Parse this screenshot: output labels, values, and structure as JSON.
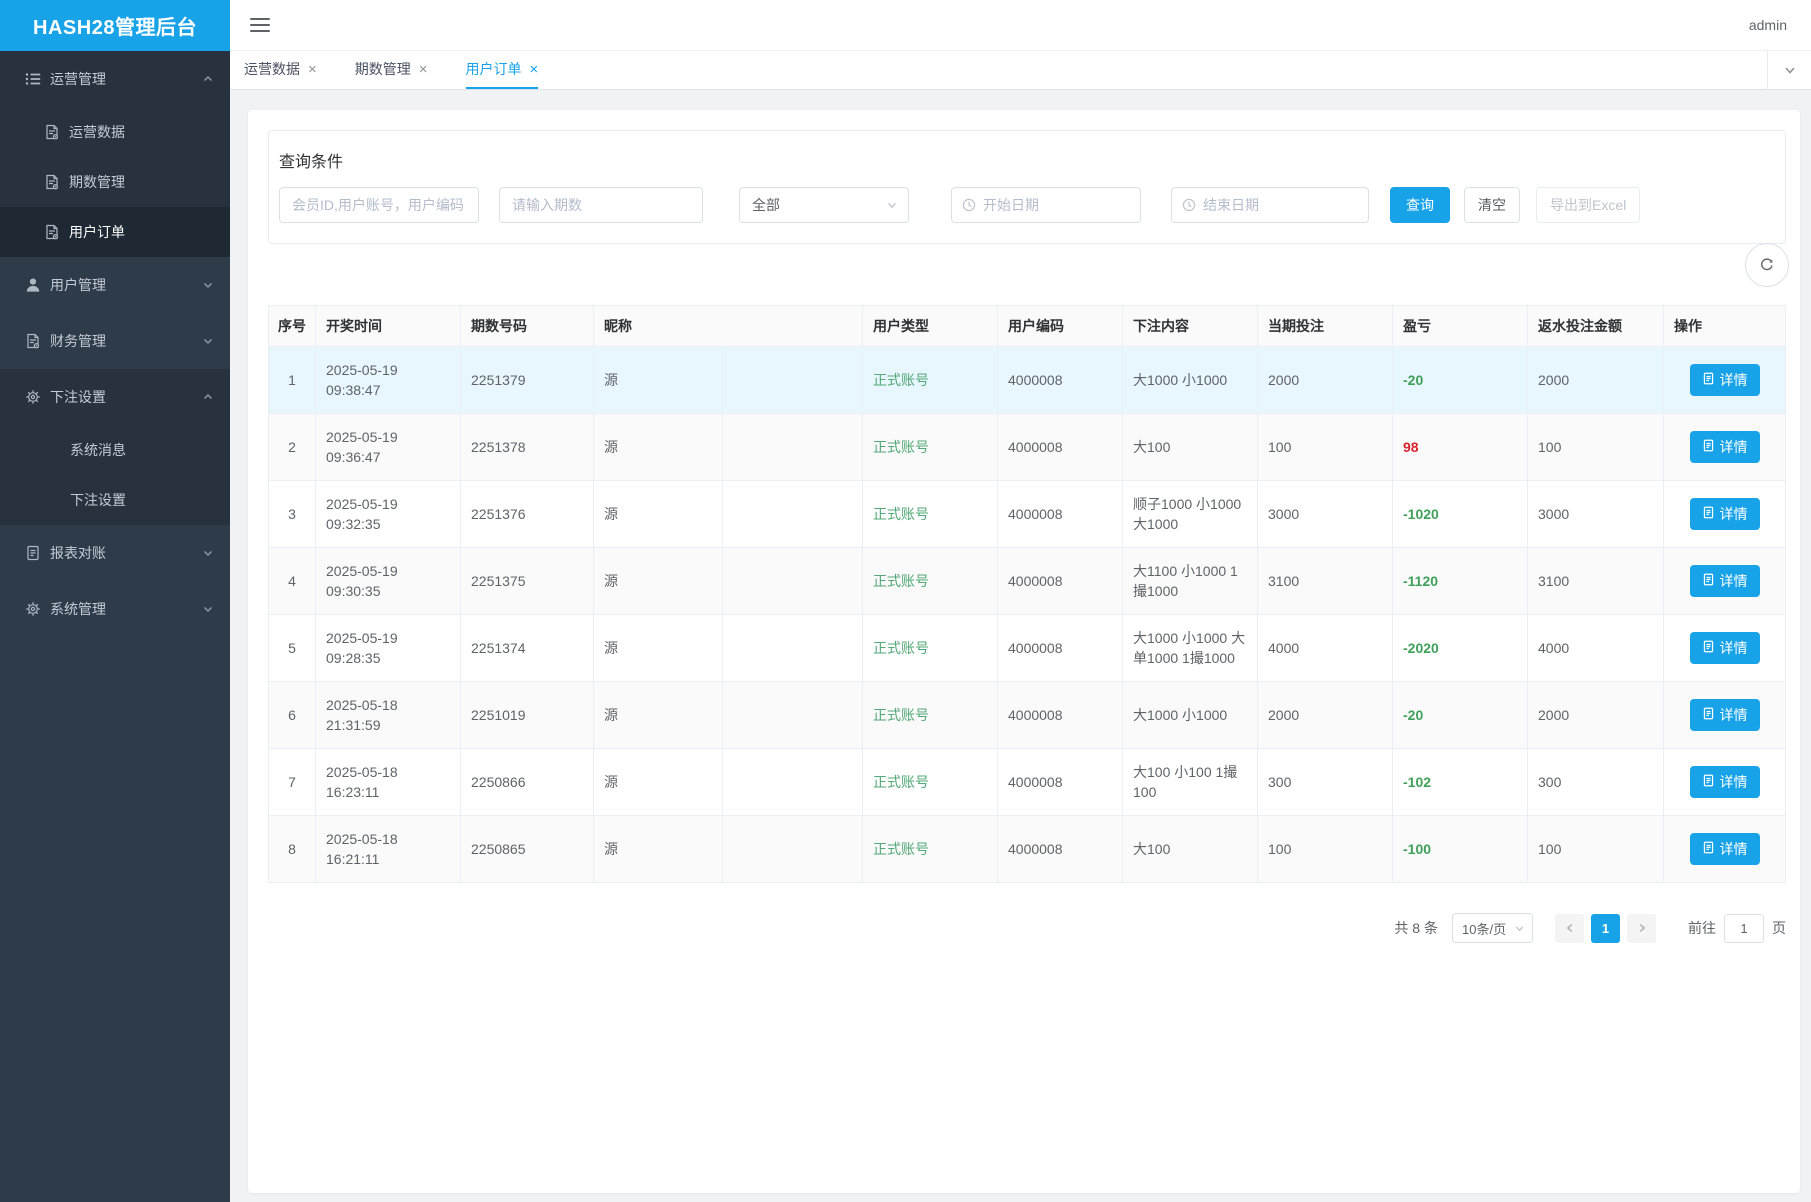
{
  "app": {
    "title": "HASH28管理后台",
    "user": "admin"
  },
  "colors": {
    "accent": "#18a3e8",
    "sidebar_bg": "#2e3b49",
    "sidebar_active_bg": "#1f2933",
    "green_amount": "#3fa05a",
    "green_badge": "#52a876",
    "red": "#d9232d",
    "highlight_row": "#e8f6fd"
  },
  "icons": {
    "hamburger": "☰",
    "close": "×",
    "chevron_down": "⌄",
    "chevron_up": "⌃",
    "clock": "🕓",
    "refresh": "⟳",
    "document": "📄",
    "user": "👤",
    "gear": "⚙",
    "list": "≣",
    "prev": "‹",
    "next": "›"
  },
  "sidebar": {
    "groups": [
      {
        "name": "operations",
        "label": "运营管理",
        "icon": "list-icon",
        "expanded": true,
        "children": [
          {
            "name": "operation-data",
            "label": "运营数据",
            "icon": "doc-gear-icon"
          },
          {
            "name": "period-management",
            "label": "期数管理",
            "icon": "doc-gear-icon"
          },
          {
            "name": "user-orders",
            "label": "用户订单",
            "icon": "doc-gear-icon",
            "active": true
          }
        ]
      },
      {
        "name": "user-management",
        "label": "用户管理",
        "icon": "user-icon",
        "expanded": false
      },
      {
        "name": "finance-management",
        "label": "财务管理",
        "icon": "doc-gear-icon",
        "expanded": false
      },
      {
        "name": "bet-settings",
        "label": "下注设置",
        "icon": "gear-icon",
        "expanded": true,
        "children": [
          {
            "name": "system-messages",
            "label": "系统消息"
          },
          {
            "name": "bet-settings-sub",
            "label": "下注设置"
          }
        ]
      },
      {
        "name": "report-reconciliation",
        "label": "报表对账",
        "icon": "document-icon",
        "expanded": false
      },
      {
        "name": "system-management",
        "label": "系统管理",
        "icon": "gear-icon",
        "expanded": false
      }
    ]
  },
  "tabs": [
    {
      "label": "运营数据",
      "active": false
    },
    {
      "label": "期数管理",
      "active": false
    },
    {
      "label": "用户订单",
      "active": true
    }
  ],
  "filters": {
    "title": "查询条件",
    "member_placeholder": "会员ID,用户账号，用户编码",
    "period_placeholder": "请输入期数",
    "type_value": "全部",
    "start_date_placeholder": "开始日期",
    "end_date_placeholder": "结束日期",
    "search_label": "查询",
    "clear_label": "清空",
    "export_label": "导出到Excel"
  },
  "table": {
    "columns": [
      "序号",
      "开奖时间",
      "期数号码",
      "昵称",
      "用户类型",
      "用户编码",
      "下注内容",
      "当期投注",
      "盈亏",
      "返水投注金额",
      "操作"
    ],
    "detail_label": "详情",
    "rows": [
      {
        "index": "1",
        "time": "2025-05-19 09:38:47",
        "period": "2251379",
        "nickname": "源",
        "type": "正式账号",
        "code": "4000008",
        "content": "大1000 小1000",
        "bet": "2000",
        "profit": "-20",
        "profit_color": "green",
        "rebate": "2000",
        "highlight": true
      },
      {
        "index": "2",
        "time": "2025-05-19 09:36:47",
        "period": "2251378",
        "nickname": "源",
        "type": "正式账号",
        "code": "4000008",
        "content": "大100",
        "bet": "100",
        "profit": "98",
        "profit_color": "red",
        "rebate": "100",
        "highlight": false
      },
      {
        "index": "3",
        "time": "2025-05-19 09:32:35",
        "period": "2251376",
        "nickname": "源",
        "type": "正式账号",
        "code": "4000008",
        "content": "顺子1000 小1000 大1000",
        "bet": "3000",
        "profit": "-1020",
        "profit_color": "green",
        "rebate": "3000",
        "highlight": false
      },
      {
        "index": "4",
        "time": "2025-05-19 09:30:35",
        "period": "2251375",
        "nickname": "源",
        "type": "正式账号",
        "code": "4000008",
        "content": "大1100 小1000 1撮1000",
        "bet": "3100",
        "profit": "-1120",
        "profit_color": "green",
        "rebate": "3100",
        "highlight": false
      },
      {
        "index": "5",
        "time": "2025-05-19 09:28:35",
        "period": "2251374",
        "nickname": "源",
        "type": "正式账号",
        "code": "4000008",
        "content": "大1000 小1000 大单1000 1撮1000",
        "bet": "4000",
        "profit": "-2020",
        "profit_color": "green",
        "rebate": "4000",
        "highlight": false
      },
      {
        "index": "6",
        "time": "2025-05-18 21:31:59",
        "period": "2251019",
        "nickname": "源",
        "type": "正式账号",
        "code": "4000008",
        "content": "大1000 小1000",
        "bet": "2000",
        "profit": "-20",
        "profit_color": "green",
        "rebate": "2000",
        "highlight": false
      },
      {
        "index": "7",
        "time": "2025-05-18 16:23:11",
        "period": "2250866",
        "nickname": "源",
        "type": "正式账号",
        "code": "4000008",
        "content": "大100 小100 1撮100",
        "bet": "300",
        "profit": "-102",
        "profit_color": "green",
        "rebate": "300",
        "highlight": false
      },
      {
        "index": "8",
        "time": "2025-05-18 16:21:11",
        "period": "2250865",
        "nickname": "源",
        "type": "正式账号",
        "code": "4000008",
        "content": "大100",
        "bet": "100",
        "profit": "-100",
        "profit_color": "green",
        "rebate": "100",
        "highlight": false
      }
    ]
  },
  "pagination": {
    "total": "共 8 条",
    "page_size": "10条/页",
    "current": "1",
    "goto_label": "前往",
    "goto_value": "1",
    "page_label": "页"
  }
}
